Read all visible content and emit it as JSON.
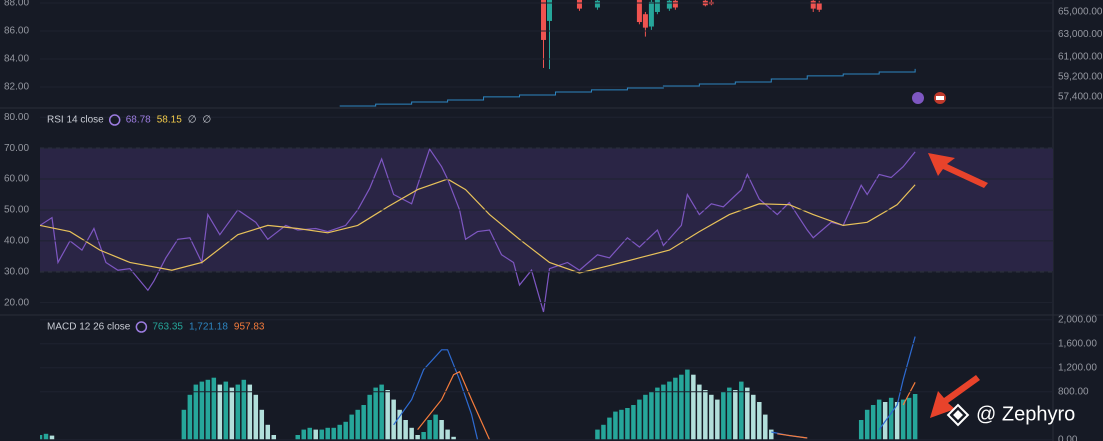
{
  "chart_data": [
    {
      "type": "candlestick",
      "xlim": [
        0,
        169
      ],
      "ylim": [
        80.5,
        88.21
      ],
      "yticks": [
        {
          "value": 88,
          "label": "88.00"
        },
        {
          "value": 86,
          "label": "86.00"
        },
        {
          "value": 84,
          "label": "84.00"
        },
        {
          "value": 82,
          "label": "82.00"
        }
      ],
      "y2lim": [
        56420,
        66070
      ],
      "y2ticks": [
        {
          "value": 65000,
          "label": "65,000.00"
        },
        {
          "value": 63000,
          "label": "63,000.00"
        },
        {
          "value": 61000,
          "label": "61,000.00"
        },
        {
          "value": 59200,
          "label": "59,200.00"
        },
        {
          "value": 57400,
          "label": "57,400.00"
        }
      ],
      "up_color": "#26a69a",
      "down_color": "#ef5350",
      "x": [
        84,
        85,
        90,
        93,
        100,
        101,
        102,
        103,
        105,
        106,
        111,
        112,
        129,
        130
      ],
      "open": [
        66200,
        64200,
        66100,
        65400,
        66100,
        64800,
        63700,
        65000,
        65300,
        66000,
        66000,
        65900,
        66000,
        65800
      ],
      "high": [
        66500,
        66300,
        66300,
        66300,
        66300,
        65000,
        66200,
        66300,
        66200,
        66200,
        66200,
        66100,
        66200,
        66000
      ],
      "low": [
        60000,
        59900,
        65100,
        65200,
        63900,
        62800,
        63400,
        64800,
        65100,
        65200,
        65500,
        65600,
        65000,
        65000
      ],
      "close": [
        62500,
        66200,
        65300,
        66000,
        64100,
        63600,
        65900,
        66100,
        66000,
        65400,
        65600,
        65700,
        65300,
        65200
      ],
      "series": [
        {
          "color": "#2e86c1",
          "step": true,
          "x": [
            50,
            56,
            62,
            68,
            74,
            80,
            86,
            92,
            98,
            104,
            110,
            116,
            122,
            128,
            134,
            140,
            146
          ],
          "values": [
            80.64,
            80.78,
            80.93,
            81.07,
            81.29,
            81.43,
            81.64,
            81.79,
            81.93,
            82.07,
            82.21,
            82.36,
            82.57,
            82.79,
            82.93,
            83.07,
            83.29
          ]
        }
      ]
    },
    {
      "type": "line",
      "legend": {
        "text": "RSI 14 close",
        "readings": [
          "68.78",
          "58.15",
          "∅",
          "∅"
        ],
        "reading_colors": [
          "#9c7ce0",
          "#f0c94a",
          "#c9ccd4",
          "#c9ccd4"
        ]
      },
      "xlim": [
        0,
        169
      ],
      "ylim": [
        16,
        83
      ],
      "yticks": [
        {
          "value": 80,
          "label": "80.00"
        },
        {
          "value": 70,
          "label": "70.00"
        },
        {
          "value": 60,
          "label": "60.00"
        },
        {
          "value": 50,
          "label": "50.00"
        },
        {
          "value": 40,
          "label": "40.00"
        },
        {
          "value": 30,
          "label": "30.00"
        },
        {
          "value": 20,
          "label": "20.00"
        }
      ],
      "band": [
        30,
        70
      ],
      "band_color": "#2a2545",
      "series": [
        {
          "color": "#7e57c2",
          "x": [
            0,
            2,
            3,
            5,
            7,
            9,
            11,
            13,
            15,
            18,
            19,
            21,
            23,
            25,
            27,
            28,
            30,
            33,
            36,
            38,
            41,
            43,
            46,
            48,
            51,
            53,
            55,
            57,
            59,
            62,
            63,
            65,
            67,
            68,
            70,
            71,
            73,
            75,
            77,
            79,
            80,
            82,
            84,
            85,
            88,
            90,
            93,
            95,
            98,
            100,
            103,
            104,
            107,
            108,
            110,
            112,
            114,
            117,
            118,
            120,
            123,
            125,
            128,
            129,
            132,
            134,
            137,
            138,
            140,
            142,
            144,
            146
          ],
          "values": [
            45,
            47.5,
            33,
            40,
            37,
            44,
            33,
            30.5,
            31,
            24,
            27,
            34.5,
            40.5,
            41,
            33,
            48.5,
            42,
            50,
            46,
            40.5,
            45,
            43.5,
            44,
            43,
            45,
            50,
            57,
            66.5,
            55,
            52,
            58,
            69.7,
            64,
            60,
            50,
            40.5,
            43,
            43.5,
            35.5,
            33,
            25.7,
            30.5,
            17,
            31,
            33,
            30.5,
            35.5,
            34.5,
            41,
            38,
            43.5,
            38.5,
            45,
            55,
            48.5,
            52,
            51,
            56.5,
            61.5,
            53.5,
            48.5,
            52.4,
            43.5,
            41,
            46,
            45,
            58,
            55,
            61.5,
            60.5,
            64,
            68.78
          ]
        },
        {
          "color": "#e8c25a",
          "x": [
            0,
            5,
            10,
            15,
            22,
            27,
            33,
            38,
            43,
            48,
            53,
            58,
            63,
            68,
            71,
            75,
            80,
            85,
            90,
            95,
            100,
            105,
            110,
            115,
            120,
            125,
            129,
            134,
            138,
            143,
            146
          ],
          "values": [
            45,
            43,
            37,
            33,
            30.5,
            33,
            42,
            45,
            44,
            42.6,
            45,
            51,
            56.6,
            60,
            56.6,
            48.5,
            40.5,
            33,
            29.6,
            32,
            34.5,
            37,
            43,
            48.5,
            52,
            51.7,
            48.5,
            45,
            46,
            51.7,
            58.15
          ]
        }
      ]
    },
    {
      "type": "bar",
      "legend": {
        "text": "MACD 12 26 close",
        "readings": [
          "763.35",
          "1,721.18",
          "957.83"
        ],
        "reading_colors": [
          "#26a69a",
          "#2e86c1",
          "#f57c3c"
        ]
      },
      "xlim": [
        0,
        169
      ],
      "ylim": [
        -20,
        2080
      ],
      "yticks": [
        {
          "value": 2000,
          "label": "2,000.00"
        },
        {
          "value": 1600,
          "label": "1,600.00"
        },
        {
          "value": 1200,
          "label": "1,200.00"
        },
        {
          "value": 800,
          "label": "800.00"
        },
        {
          "value": 0,
          "label": "0.00"
        }
      ],
      "rise_color": "#26a69a",
      "fall_color": "#b2dfdb",
      "x": [
        0,
        1,
        2,
        24,
        25,
        26,
        27,
        28,
        29,
        30,
        31,
        32,
        33,
        34,
        35,
        36,
        37,
        38,
        39,
        43,
        44,
        45,
        46,
        47,
        48,
        49,
        50,
        51,
        52,
        53,
        54,
        55,
        56,
        57,
        58,
        59,
        60,
        61,
        62,
        63,
        64,
        65,
        66,
        67,
        68,
        69,
        93,
        94,
        95,
        96,
        97,
        98,
        99,
        100,
        101,
        102,
        103,
        104,
        105,
        106,
        107,
        108,
        109,
        110,
        111,
        112,
        113,
        114,
        115,
        116,
        117,
        118,
        119,
        120,
        121,
        122,
        137,
        138,
        139,
        140,
        141,
        142,
        143,
        144,
        145,
        146
      ],
      "values": [
        80,
        100,
        70,
        500,
        750,
        920,
        970,
        1000,
        1035,
        920,
        970,
        870,
        920,
        1000,
        920,
        750,
        500,
        250,
        80,
        80,
        170,
        200,
        170,
        170,
        200,
        200,
        250,
        300,
        420,
        500,
        580,
        750,
        870,
        920,
        830,
        670,
        500,
        330,
        200,
        80,
        130,
        330,
        420,
        330,
        170,
        50,
        170,
        250,
        370,
        470,
        500,
        530,
        580,
        670,
        750,
        800,
        870,
        920,
        970,
        1035,
        1085,
        1170,
        1085,
        920,
        830,
        750,
        670,
        800,
        870,
        830,
        970,
        870,
        750,
        630,
        420,
        170,
        330,
        500,
        580,
        670,
        630,
        700,
        630,
        670,
        700,
        763.35
      ],
      "series": [
        {
          "color": "#2e6bd1",
          "x": [
            59,
            62,
            64,
            67,
            68,
            70,
            72,
            73,
            null,
            122,
            125,
            128,
            null,
            140,
            143,
            144,
            146
          ],
          "values": [
            250,
            670,
            1170,
            1500,
            1500,
            1000,
            420,
            0,
            null,
            130,
            70,
            30,
            null,
            170,
            580,
            1000,
            1721.18
          ]
        },
        {
          "color": "#f57c3c",
          "x": [
            63,
            67,
            69,
            70,
            72,
            75,
            null,
            123,
            128,
            null,
            144,
            146
          ],
          "values": [
            170,
            670,
            1085,
            1135,
            670,
            0,
            null,
            100,
            30,
            null,
            580,
            957.83
          ]
        }
      ]
    }
  ],
  "watermark": "@ Zephyro"
}
